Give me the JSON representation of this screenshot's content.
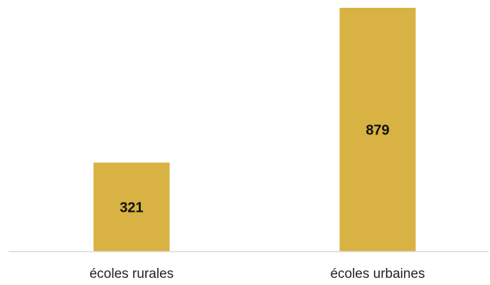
{
  "chart_data": {
    "type": "bar",
    "categories": [
      "écoles rurales",
      "écoles urbaines"
    ],
    "values": [
      321,
      879
    ],
    "data_labels": [
      "321",
      "879"
    ],
    "title": "",
    "xlabel": "",
    "ylabel": "",
    "ylim": [
      0,
      900
    ],
    "grid": false,
    "legend": "none",
    "colors": {
      "bar": "#D8B242",
      "axis": "#D9D9D9",
      "label": "#111111"
    }
  }
}
